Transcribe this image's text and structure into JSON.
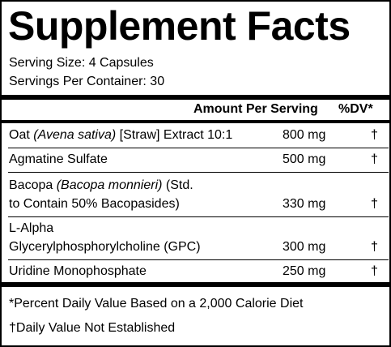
{
  "title": "Supplement Facts",
  "serving_size": "Serving Size: 4 Capsules",
  "servings_per_container": "Servings Per Container: 30",
  "header": {
    "amount": "Amount Per Serving",
    "dv": "%DV*"
  },
  "ingredients": [
    {
      "name_pre": "Oat ",
      "name_italic": "(Avena sativa)",
      "name_post": " [Straw] Extract 10:1",
      "name_line2": "",
      "amount": "800 mg",
      "dv": "†"
    },
    {
      "name_pre": "Agmatine Sulfate",
      "name_italic": "",
      "name_post": "",
      "name_line2": "",
      "amount": "500 mg",
      "dv": "†"
    },
    {
      "name_pre": "Bacopa ",
      "name_italic": "(Bacopa monnieri)",
      "name_post": " (Std.",
      "name_line2": "to Contain 50% Bacopasides)",
      "amount": "330 mg",
      "dv": "†"
    },
    {
      "name_pre": "L-Alpha",
      "name_italic": "",
      "name_post": "",
      "name_line2": "Glycerylphosphorylcholine (GPC)",
      "amount": "300 mg",
      "dv": "†"
    },
    {
      "name_pre": "Uridine Monophosphate",
      "name_italic": "",
      "name_post": "",
      "name_line2": "",
      "amount": "250 mg",
      "dv": "†"
    }
  ],
  "footnotes": [
    "*Percent Daily Value Based on a 2,000 Calorie Diet",
    "†Daily Value Not Established"
  ]
}
